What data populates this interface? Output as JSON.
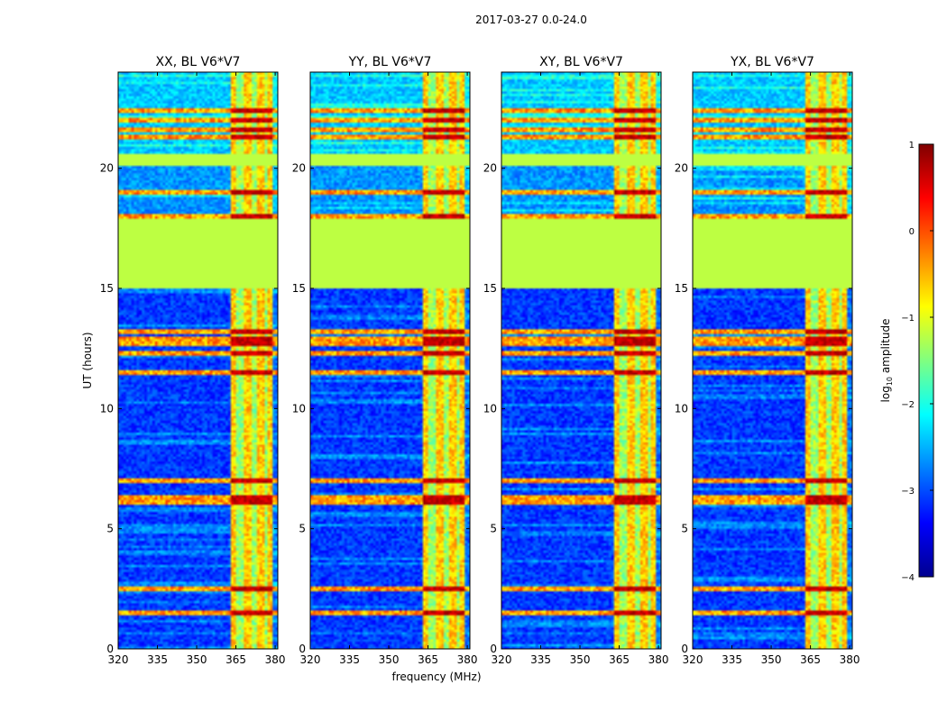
{
  "figure_title": "2017-03-27 0.0-24.0",
  "chart_data": {
    "type": "heatmap",
    "suptitle": "2017-03-27 0.0-24.0",
    "xlabel": "frequency (MHz)",
    "ylabel": "UT (hours)",
    "xlim": [
      320,
      381
    ],
    "ylim": [
      0,
      24
    ],
    "xticks": [
      320,
      335,
      350,
      365,
      380
    ],
    "yticks": [
      0,
      5,
      10,
      15,
      20
    ],
    "xtick_labels": [
      "320",
      "335",
      "350",
      "365",
      "380"
    ],
    "ytick_labels": [
      "0",
      "5",
      "10",
      "15",
      "20"
    ],
    "panels": [
      {
        "title": "XX, BL V6*V7",
        "polarization": "XX"
      },
      {
        "title": "YY, BL V6*V7",
        "polarization": "YY"
      },
      {
        "title": "XY, BL V6*V7",
        "polarization": "XY"
      },
      {
        "title": "YX, BL V6*V7",
        "polarization": "YX"
      }
    ],
    "rfi_band_mhz": [
      363,
      379
    ],
    "rfi_columns_mhz": [
      364,
      369.5,
      374.5,
      378.5
    ],
    "flagged_time_ranges_hours": [
      [
        15.0,
        17.9
      ],
      [
        20.1,
        20.6
      ]
    ],
    "strong_rfi_times_hours": [
      1.5,
      2.5,
      6.1,
      6.3,
      7.0,
      11.5,
      12.3,
      12.7,
      12.9,
      13.2,
      18.0,
      19.0,
      21.3,
      21.6,
      22.0,
      22.4
    ],
    "colorbar": {
      "label_prefix": "log",
      "label_sub": "10",
      "label_suffix": " amplitude",
      "range": [
        -4,
        1
      ],
      "ticks": [
        1,
        0,
        -1,
        -2,
        -3,
        -4
      ],
      "tick_labels": [
        "1",
        "0",
        "−1",
        "−2",
        "−3",
        "−4"
      ],
      "colormap": "jet"
    }
  }
}
